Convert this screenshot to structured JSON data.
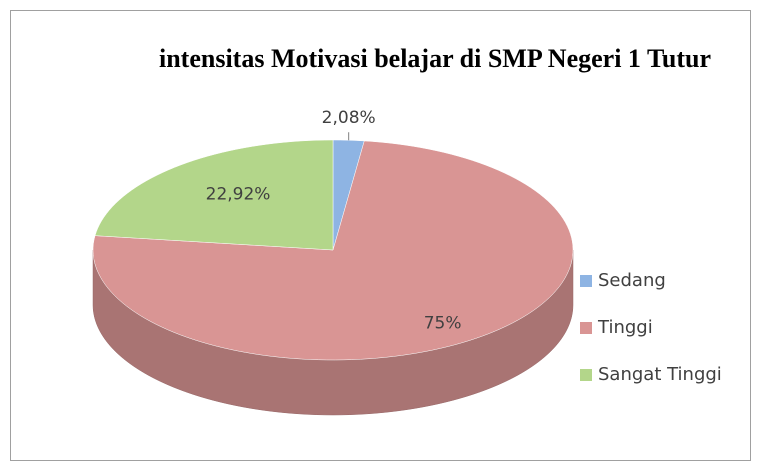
{
  "chart_data": {
    "type": "pie",
    "title": "intensitas Motivasi belajar di SMP Negeri 1 Tutur",
    "categories": [
      "Sedang",
      "Tinggi",
      "Sangat Tinggi"
    ],
    "values": [
      2.08,
      75,
      22.92
    ],
    "value_labels": [
      "2,08%",
      "75%",
      "22,92%"
    ],
    "colors": [
      "#8eb4e3",
      "#d99594",
      "#b3d68a"
    ],
    "legend": "right"
  }
}
